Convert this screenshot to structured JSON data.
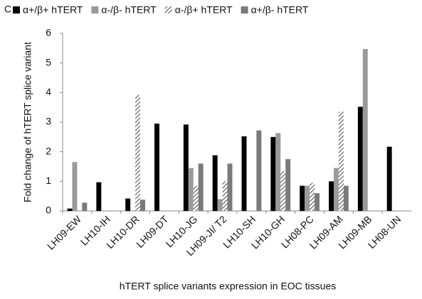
{
  "chart_data": {
    "type": "bar",
    "panel_label": "C",
    "y_label": "Fold change of hTERT splice variant",
    "x_label": "hTERT splice variants expression in EOC tissues",
    "categories": [
      "LH09-EW",
      "LH10-IH",
      "LH10-DR",
      "LH09-DT",
      "LH10-JG",
      "LH09-JI/ T2",
      "LH10-SH",
      "LH10-GH",
      "LH08-PC",
      "LH09-AM",
      "LH09-MB",
      "LH08-UN"
    ],
    "series": [
      {
        "name": "α+/β+  hTERT",
        "color": "#000000",
        "hatch": false,
        "values": [
          0.08,
          0.97,
          0.42,
          2.95,
          2.92,
          1.88,
          2.52,
          2.5,
          0.85,
          1.0,
          3.52,
          2.17
        ]
      },
      {
        "name": "α-/β-  hTERT",
        "color": "#9a9a9a",
        "hatch": false,
        "values": [
          1.65,
          0,
          0,
          0,
          1.45,
          0.4,
          0,
          2.63,
          0.85,
          1.45,
          5.47,
          0
        ]
      },
      {
        "name": "α-/β+  hTERT",
        "color": "#555555",
        "hatch": true,
        "values": [
          0,
          0,
          3.92,
          0,
          0.85,
          1.0,
          0,
          1.35,
          0.95,
          3.35,
          0,
          0
        ]
      },
      {
        "name": "α+/β-  hTERT",
        "color": "#7a7a7a",
        "hatch": false,
        "values": [
          0.28,
          0,
          0.38,
          0,
          1.6,
          1.6,
          2.72,
          1.75,
          0.6,
          0.85,
          0,
          0
        ]
      }
    ],
    "ylim": [
      0,
      6
    ],
    "yticks": [
      0,
      1,
      2,
      3,
      4,
      5,
      6
    ],
    "grid": false
  }
}
